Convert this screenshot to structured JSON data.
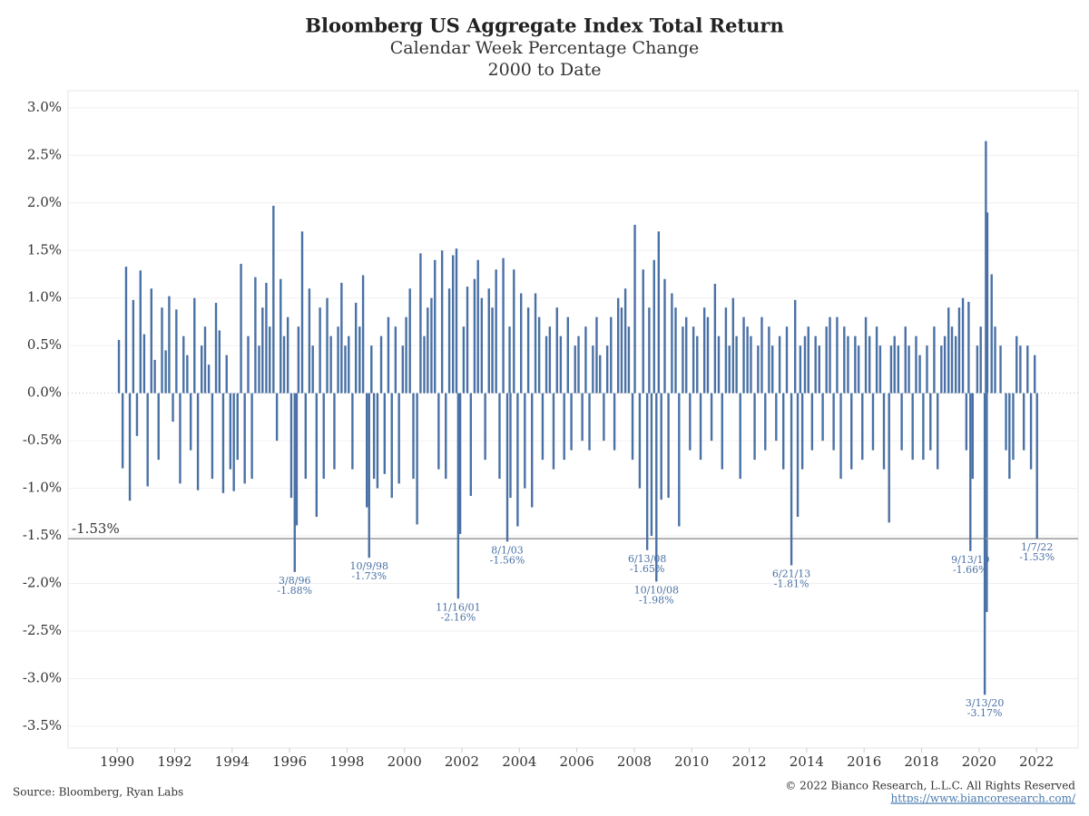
{
  "chart_data": {
    "type": "bar",
    "title": "Bloomberg US Aggregate Index Total Return",
    "subtitle": "Calendar Week Percentage Change",
    "subtitle2": "2000 to Date",
    "source": "Source: Bloomberg, Ryan Labs",
    "copyright": "© 2022 Bianco Research, L.L.C. All Rights Reserved",
    "url": "https://www.biancoresearch.com/",
    "color": "#4a71a5",
    "grid": true,
    "xlim": [
      1988.29,
      2023.45
    ],
    "ylim": [
      -3.73,
      3.18
    ],
    "xticks": [
      1990,
      1992,
      1994,
      1996,
      1998,
      2000,
      2002,
      2004,
      2006,
      2008,
      2010,
      2012,
      2014,
      2016,
      2018,
      2020,
      2022
    ],
    "yticks": [
      {
        "value": 3,
        "label": "3.0%"
      },
      {
        "value": 2.5,
        "label": "2.5%"
      },
      {
        "value": 2,
        "label": "2.0%"
      },
      {
        "value": 1.5,
        "label": "1.5%"
      },
      {
        "value": 1,
        "label": "1.0%"
      },
      {
        "value": 0.5,
        "label": "0.5%"
      },
      {
        "value": 0,
        "label": "0.0%"
      },
      {
        "value": -0.5,
        "label": "-0.5%"
      },
      {
        "value": -1,
        "label": "-1.0%"
      },
      {
        "value": -1.5,
        "label": "-1.5%"
      },
      {
        "value": -2,
        "label": "-2.0%"
      },
      {
        "value": -2.5,
        "label": "-2.5%"
      },
      {
        "value": -3,
        "label": "-3.0%"
      },
      {
        "value": -3.5,
        "label": "-3.5%"
      }
    ],
    "reference_line": {
      "value": -1.53,
      "label": "-1.53%"
    },
    "x": [
      1990.06,
      1990.19,
      1990.31,
      1990.44,
      1990.56,
      1990.69,
      1990.81,
      1990.94,
      1991.06,
      1991.19,
      1991.31,
      1991.44,
      1991.56,
      1991.69,
      1991.81,
      1991.94,
      1992.06,
      1992.19,
      1992.31,
      1992.44,
      1992.56,
      1992.69,
      1992.81,
      1992.94,
      1993.06,
      1993.19,
      1993.31,
      1993.44,
      1993.56,
      1993.69,
      1993.81,
      1993.94,
      1994.06,
      1994.19,
      1994.31,
      1994.44,
      1994.56,
      1994.69,
      1994.81,
      1994.94,
      1995.06,
      1995.19,
      1995.31,
      1995.44,
      1995.56,
      1995.69,
      1995.81,
      1995.94,
      1996.06,
      1996.25,
      1996.31,
      1996.44,
      1996.56,
      1996.69,
      1996.81,
      1996.94,
      1997.06,
      1997.19,
      1997.31,
      1997.44,
      1997.56,
      1997.69,
      1997.81,
      1997.94,
      1998.06,
      1998.19,
      1998.31,
      1998.44,
      1998.56,
      1998.69,
      1998.85,
      1998.94,
      1999.06,
      1999.19,
      1999.31,
      1999.44,
      1999.56,
      1999.69,
      1999.81,
      1999.94,
      2000.06,
      2000.19,
      2000.31,
      2000.44,
      2000.56,
      2000.69,
      2000.81,
      2000.94,
      2001.06,
      2001.19,
      2001.31,
      2001.44,
      2001.56,
      2001.69,
      2001.81,
      2001.94,
      2002.06,
      2002.19,
      2002.31,
      2002.44,
      2002.56,
      2002.69,
      2002.81,
      2002.94,
      2003.06,
      2003.19,
      2003.31,
      2003.44,
      2003.66,
      2003.69,
      2003.81,
      2003.94,
      2004.06,
      2004.19,
      2004.31,
      2004.44,
      2004.56,
      2004.69,
      2004.81,
      2004.94,
      2005.06,
      2005.19,
      2005.31,
      2005.44,
      2005.56,
      2005.69,
      2005.81,
      2005.94,
      2006.06,
      2006.19,
      2006.31,
      2006.44,
      2006.56,
      2006.69,
      2006.81,
      2006.94,
      2007.06,
      2007.19,
      2007.31,
      2007.44,
      2007.56,
      2007.69,
      2007.81,
      2007.94,
      2008.02,
      2008.19,
      2008.31,
      2008.52,
      2008.6,
      2008.69,
      2008.85,
      2008.94,
      2009.06,
      2009.19,
      2009.31,
      2009.44,
      2009.56,
      2009.69,
      2009.81,
      2009.94,
      2010.06,
      2010.19,
      2010.31,
      2010.44,
      2010.56,
      2010.69,
      2010.81,
      2010.94,
      2011.06,
      2011.19,
      2011.31,
      2011.44,
      2011.56,
      2011.69,
      2011.81,
      2011.94,
      2012.06,
      2012.19,
      2012.31,
      2012.44,
      2012.56,
      2012.69,
      2012.81,
      2012.94,
      2013.06,
      2013.19,
      2013.31,
      2013.6,
      2013.69,
      2013.78,
      2013.85,
      2013.94,
      2014.06,
      2014.19,
      2014.31,
      2014.44,
      2014.56,
      2014.69,
      2014.81,
      2014.94,
      2015.06,
      2015.19,
      2015.31,
      2015.44,
      2015.56,
      2015.69,
      2015.81,
      2015.94,
      2016.06,
      2016.19,
      2016.31,
      2016.44,
      2016.56,
      2016.69,
      2016.87,
      2016.94,
      2017.06,
      2017.19,
      2017.31,
      2017.44,
      2017.56,
      2017.69,
      2017.81,
      2017.94,
      2018.06,
      2018.19,
      2018.31,
      2018.44,
      2018.56,
      2018.69,
      2018.81,
      2018.94,
      2019.06,
      2019.19,
      2019.31,
      2019.44,
      2019.56,
      2019.64,
      2019.78,
      2019.94,
      2020.06,
      2020.24,
      2020.27,
      2020.29,
      2020.44,
      2020.56,
      2020.75,
      2020.94,
      2021.06,
      2021.19,
      2021.31,
      2021.44,
      2021.56,
      2021.69,
      2021.81,
      2021.94
    ],
    "values": [
      0.56,
      -0.79,
      1.33,
      -1.13,
      0.98,
      -0.45,
      1.29,
      0.62,
      -0.98,
      1.1,
      0.35,
      -0.7,
      0.9,
      0.45,
      1.02,
      -0.3,
      0.88,
      -0.95,
      0.6,
      0.4,
      -0.6,
      1.0,
      -1.02,
      0.5,
      0.7,
      0.3,
      -0.9,
      0.95,
      0.66,
      -1.05,
      0.4,
      -0.8,
      -1.03,
      -0.7,
      1.36,
      -0.95,
      0.6,
      -0.9,
      1.22,
      0.5,
      0.9,
      1.16,
      0.7,
      1.97,
      -0.5,
      1.2,
      0.6,
      0.8,
      -1.1,
      -1.39,
      0.7,
      1.7,
      -0.9,
      1.1,
      0.5,
      -1.3,
      0.9,
      -0.9,
      1.0,
      0.6,
      -0.8,
      0.7,
      1.16,
      0.5,
      0.6,
      -0.8,
      0.95,
      0.7,
      1.24,
      -1.2,
      0.5,
      -0.9,
      -1.0,
      0.6,
      -0.85,
      0.8,
      -1.1,
      0.7,
      -0.95,
      0.5,
      0.8,
      1.1,
      -0.9,
      -1.38,
      1.47,
      0.6,
      0.9,
      1.0,
      1.4,
      -0.8,
      1.5,
      -0.9,
      1.1,
      1.45,
      1.52,
      -1.48,
      0.7,
      1.12,
      -1.08,
      1.2,
      1.4,
      1.0,
      -0.7,
      1.1,
      0.9,
      1.3,
      -0.9,
      1.42,
      0.7,
      -1.1,
      1.3,
      -1.4,
      1.05,
      -1.0,
      0.9,
      -1.2,
      1.05,
      0.8,
      -0.7,
      0.6,
      0.7,
      -0.8,
      0.9,
      0.6,
      -0.7,
      0.8,
      -0.6,
      0.5,
      0.6,
      -0.5,
      0.7,
      -0.6,
      0.5,
      0.8,
      0.4,
      -0.5,
      0.5,
      0.8,
      -0.6,
      1.0,
      0.9,
      1.1,
      0.7,
      -0.7,
      1.77,
      -1.0,
      1.3,
      0.9,
      -1.5,
      1.4,
      1.7,
      -1.12,
      1.2,
      -1.1,
      1.05,
      0.9,
      -1.4,
      0.7,
      0.8,
      -0.6,
      0.7,
      0.6,
      -0.7,
      0.9,
      0.8,
      -0.5,
      1.15,
      0.6,
      -0.8,
      0.9,
      0.5,
      1.0,
      0.6,
      -0.9,
      0.8,
      0.7,
      0.6,
      -0.7,
      0.5,
      0.8,
      -0.6,
      0.7,
      0.5,
      -0.5,
      0.6,
      -0.8,
      0.7,
      0.98,
      -1.3,
      0.5,
      -0.8,
      0.6,
      0.7,
      -0.6,
      0.6,
      0.5,
      -0.5,
      0.7,
      0.8,
      -0.6,
      0.8,
      -0.9,
      0.7,
      0.6,
      -0.8,
      0.6,
      0.5,
      -0.7,
      0.8,
      0.6,
      -0.6,
      0.7,
      0.5,
      -0.8,
      -1.36,
      0.5,
      0.6,
      0.5,
      -0.6,
      0.7,
      0.5,
      -0.7,
      0.6,
      0.4,
      -0.7,
      0.5,
      -0.6,
      0.7,
      -0.8,
      0.5,
      0.6,
      0.9,
      0.7,
      0.6,
      0.9,
      1.0,
      -0.6,
      0.96,
      -0.9,
      0.5,
      0.7,
      2.65,
      -2.3,
      1.9,
      1.25,
      0.7,
      0.5,
      -0.6,
      -0.9,
      -0.7,
      0.6,
      0.5,
      -0.6,
      0.5,
      -0.8,
      0.4
    ],
    "annotations": [
      {
        "date": "3/8/96",
        "x": 1996.18,
        "value": -1.88,
        "value_label": "-1.88%"
      },
      {
        "date": "10/9/98",
        "x": 1998.77,
        "value": -1.73,
        "value_label": "-1.73%"
      },
      {
        "date": "11/16/01",
        "x": 2001.87,
        "value": -2.16,
        "value_label": "-2.16%"
      },
      {
        "date": "8/1/03",
        "x": 2003.58,
        "value": -1.56,
        "value_label": "-1.56%"
      },
      {
        "date": "6/13/08",
        "x": 2008.45,
        "value": -1.65,
        "value_label": "-1.65%"
      },
      {
        "date": "10/10/08",
        "x": 2008.77,
        "value": -1.98,
        "value_label": "-1.98%"
      },
      {
        "date": "6/21/13",
        "x": 2013.47,
        "value": -1.81,
        "value_label": "-1.81%"
      },
      {
        "date": "9/13/19",
        "x": 2019.7,
        "value": -1.66,
        "value_label": "-1.66%"
      },
      {
        "date": "3/13/20",
        "x": 2020.2,
        "value": -3.17,
        "value_label": "-3.17%"
      },
      {
        "date": "1/7/22",
        "x": 2022.02,
        "value": -1.53,
        "value_label": "-1.53%"
      }
    ]
  }
}
